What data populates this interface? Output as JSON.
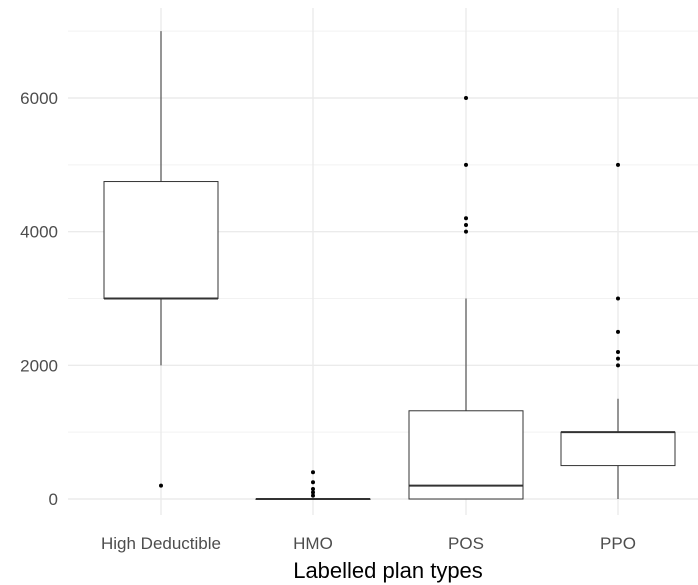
{
  "chart_data": {
    "type": "boxplot",
    "title": "",
    "xlabel": "Labelled plan types",
    "ylabel": "",
    "categories": [
      "High Deductible",
      "HMO",
      "POS",
      "PPO"
    ],
    "ylim": [
      -450,
      7350
    ],
    "yticks": [
      0,
      2000,
      4000,
      6000
    ],
    "ytick_labels": [
      "0",
      "2000",
      "4000",
      "6000"
    ],
    "grid": true,
    "legend": "none",
    "boxes": [
      {
        "category": "High Deductible",
        "whisker_low": 2000,
        "q1": 3000,
        "median": 3000,
        "q3": 4750,
        "whisker_high": 7000,
        "outliers": [
          200
        ]
      },
      {
        "category": "HMO",
        "whisker_low": 0,
        "q1": 0,
        "median": 0,
        "q3": 0,
        "whisker_high": 0,
        "outliers": [
          50,
          100,
          150,
          250,
          400
        ]
      },
      {
        "category": "POS",
        "whisker_low": 0,
        "q1": 0,
        "median": 200,
        "q3": 1320,
        "whisker_high": 3000,
        "outliers": [
          4000,
          4100,
          4200,
          5000,
          6000
        ]
      },
      {
        "category": "PPO",
        "whisker_low": 0,
        "q1": 500,
        "median": 1000,
        "q3": 1000,
        "whisker_high": 1500,
        "outliers": [
          2000,
          2100,
          2200,
          2500,
          3000,
          5000
        ]
      }
    ],
    "colors": {
      "grid_major": "#ebebeb",
      "grid_minor": "#f2f2f2",
      "box_fill": "#ffffff",
      "box_stroke": "#333333"
    }
  }
}
